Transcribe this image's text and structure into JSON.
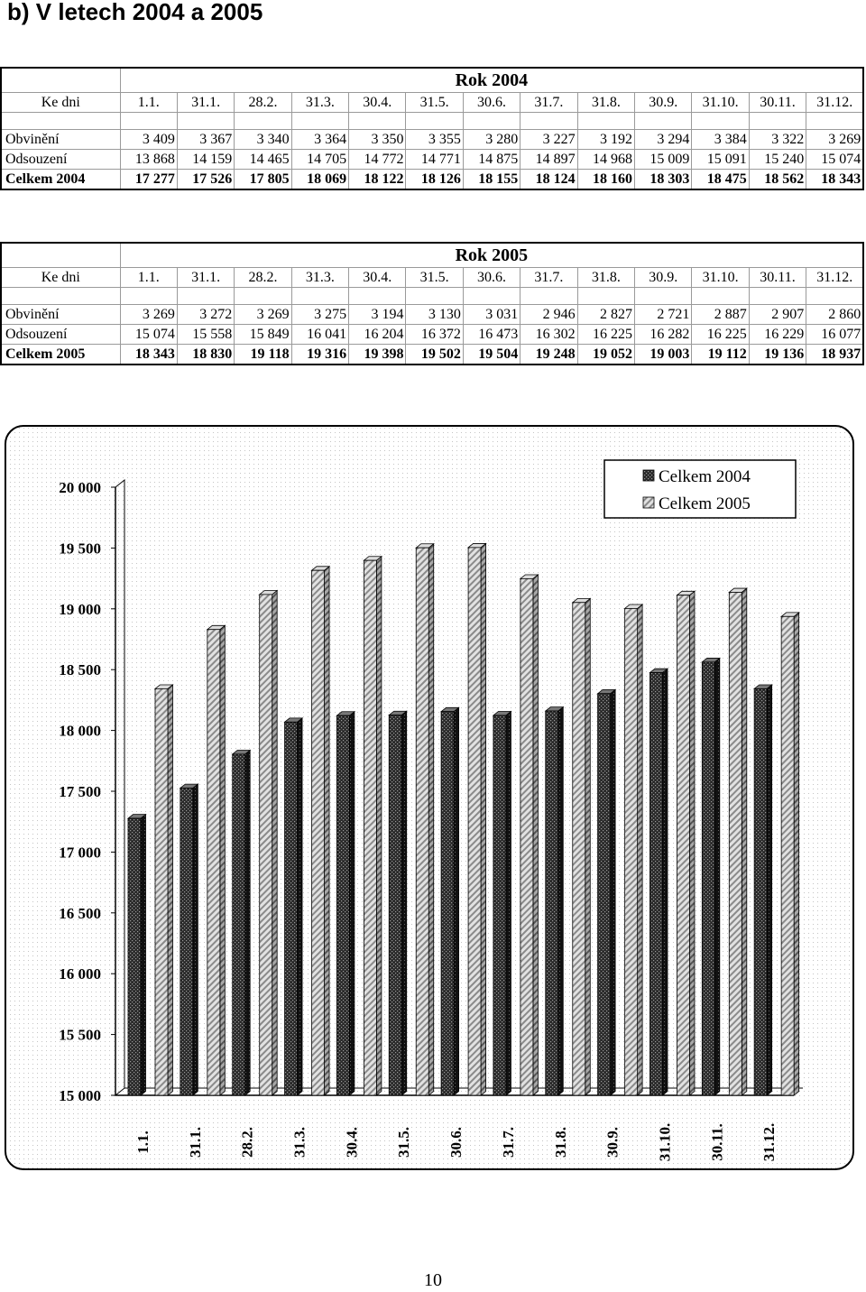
{
  "heading": "b)  V letech 2004 a 2005",
  "tables": [
    {
      "title": "Rok 2004",
      "header_label": "Ke dni",
      "dates": [
        "1.1.",
        "31.1.",
        "28.2.",
        "31.3.",
        "30.4.",
        "31.5.",
        "30.6.",
        "31.7.",
        "31.8.",
        "30.9.",
        "31.10.",
        "30.11.",
        "31.12."
      ],
      "rows": [
        {
          "label": "Obvinění",
          "values": [
            "3 409",
            "3 367",
            "3 340",
            "3 364",
            "3 350",
            "3 355",
            "3 280",
            "3 227",
            "3 192",
            "3 294",
            "3 384",
            "3 322",
            "3 269"
          ]
        },
        {
          "label": "Odsouzení",
          "values": [
            "13 868",
            "14 159",
            "14 465",
            "14 705",
            "14 772",
            "14 771",
            "14 875",
            "14 897",
            "14 968",
            "15 009",
            "15 091",
            "15 240",
            "15 074"
          ]
        },
        {
          "label": "Celkem 2004",
          "values": [
            "17 277",
            "17 526",
            "17 805",
            "18 069",
            "18 122",
            "18 126",
            "18 155",
            "18 124",
            "18 160",
            "18 303",
            "18 475",
            "18 562",
            "18 343"
          ]
        }
      ]
    },
    {
      "title": "Rok 2005",
      "header_label": "Ke dni",
      "dates": [
        "1.1.",
        "31.1.",
        "28.2.",
        "31.3.",
        "30.4.",
        "31.5.",
        "30.6.",
        "31.7.",
        "31.8.",
        "30.9.",
        "31.10.",
        "30.11.",
        "31.12."
      ],
      "rows": [
        {
          "label": "Obvinění",
          "values": [
            "3 269",
            "3 272",
            "3 269",
            "3 275",
            "3 194",
            "3 130",
            "3 031",
            "2 946",
            "2 827",
            "2 721",
            "2 887",
            "2 907",
            "2 860"
          ]
        },
        {
          "label": "Odsouzení",
          "values": [
            "15 074",
            "15 558",
            "15 849",
            "16 041",
            "16 204",
            "16 372",
            "16 473",
            "16 302",
            "16 225",
            "16 282",
            "16 225",
            "16 229",
            "16 077"
          ]
        },
        {
          "label": "Celkem 2005",
          "values": [
            "18 343",
            "18 830",
            "19 118",
            "19 316",
            "19 398",
            "19 502",
            "19 504",
            "19 248",
            "19 052",
            "19 003",
            "19 112",
            "19 136",
            "18 937"
          ]
        }
      ]
    }
  ],
  "chart_data": {
    "type": "bar",
    "categories": [
      "1.1.",
      "31.1.",
      "28.2.",
      "31.3.",
      "30.4.",
      "31.5.",
      "30.6.",
      "31.7.",
      "31.8.",
      "30.9.",
      "31.10.",
      "30.11.",
      "31.12."
    ],
    "series": [
      {
        "name": "Celkem 2004",
        "values": [
          17277,
          17526,
          17805,
          18069,
          18122,
          18126,
          18155,
          18124,
          18160,
          18303,
          18475,
          18562,
          18343
        ],
        "color": "#333333",
        "pattern": "dotted-dark"
      },
      {
        "name": "Celkem 2005",
        "values": [
          18343,
          18830,
          19118,
          19316,
          19398,
          19502,
          19504,
          19248,
          19052,
          19003,
          19112,
          19136,
          18937
        ],
        "color": "#c8c8c8",
        "pattern": "diagonal-hatch"
      }
    ],
    "ylim": [
      15000,
      20000
    ],
    "yticks": [
      "15 000",
      "15 500",
      "16 000",
      "16 500",
      "17 000",
      "17 500",
      "18 000",
      "18 500",
      "19 000",
      "19 500",
      "20 000"
    ],
    "ytick_values": [
      15000,
      15500,
      16000,
      16500,
      17000,
      17500,
      18000,
      18500,
      19000,
      19500,
      20000
    ],
    "title": "",
    "xlabel": "",
    "ylabel": "",
    "legend_position": "top-right",
    "three_d": true,
    "grid": false
  },
  "page_number": "10"
}
